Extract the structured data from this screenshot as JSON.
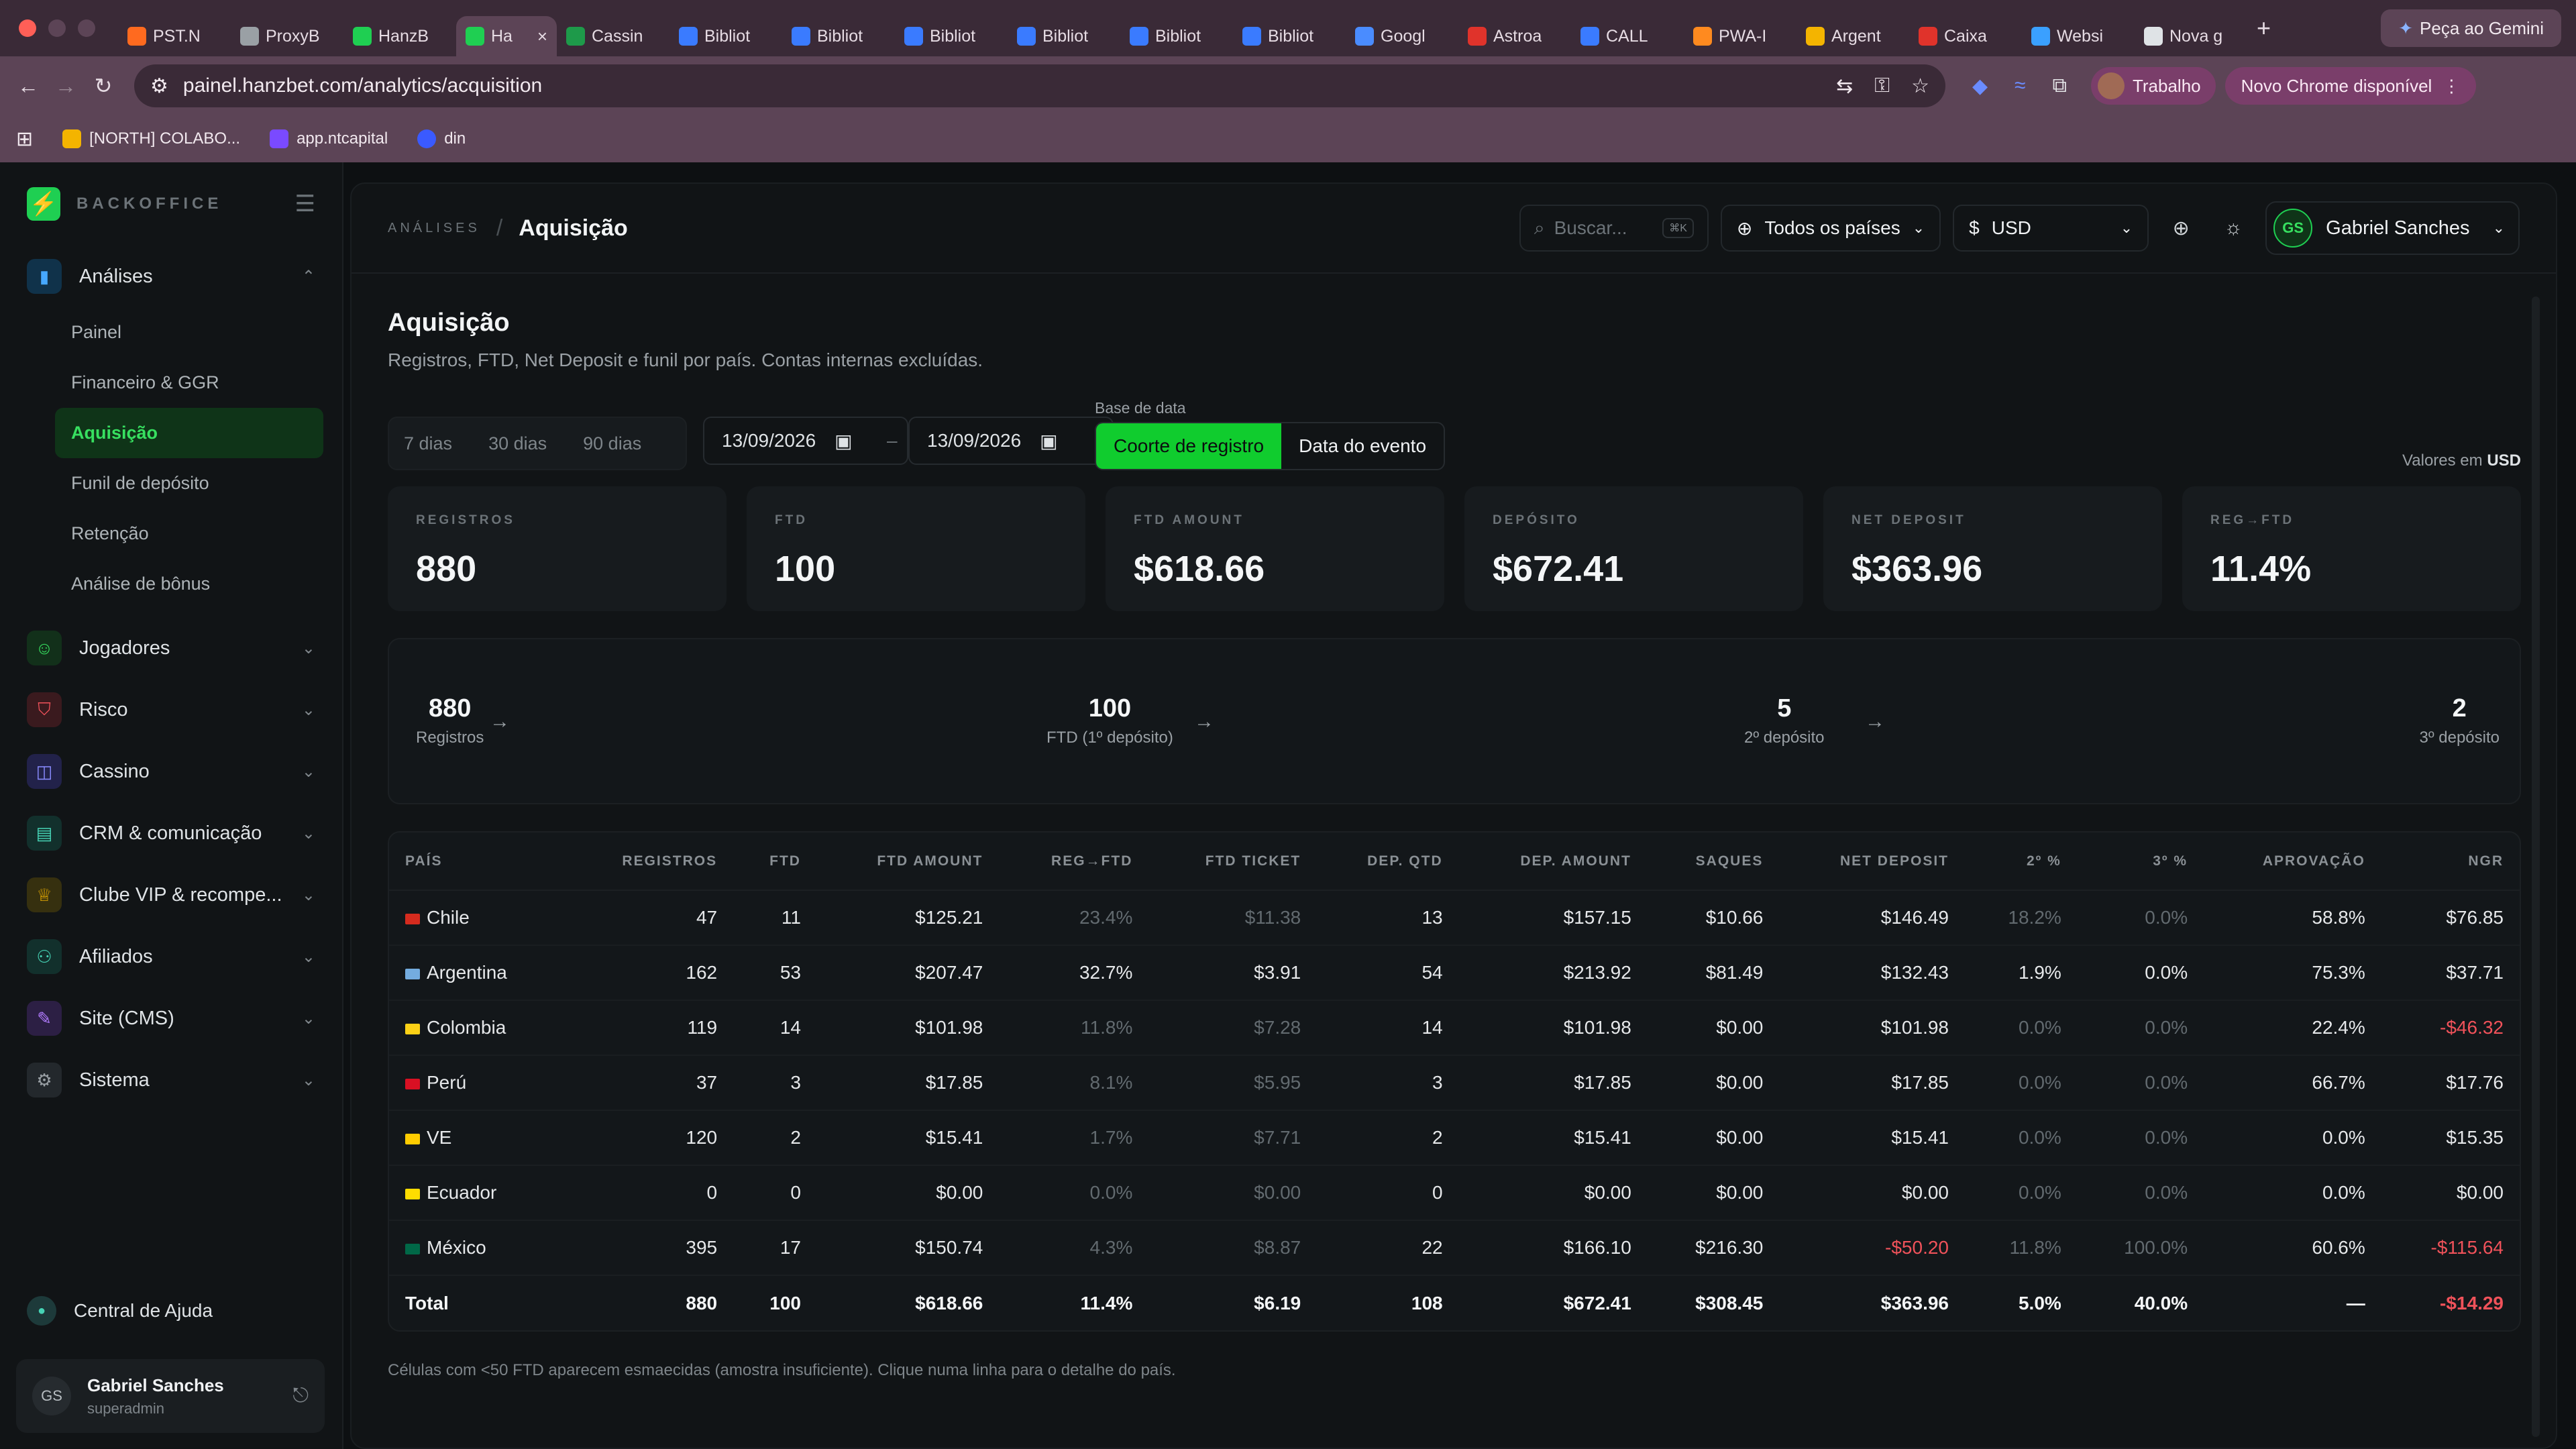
{
  "browser": {
    "tabs": [
      {
        "label": "PST.N",
        "color": "#ff6a1f"
      },
      {
        "label": "ProxyB",
        "color": "#9aa0a5"
      },
      {
        "label": "HanzB",
        "color": "#1fcf52"
      },
      {
        "label": "Ha",
        "color": "#1fcf52",
        "active": true
      },
      {
        "label": "Cassin",
        "color": "#1e9a4a"
      },
      {
        "label": "Bibliot",
        "color": "#3a7bff"
      },
      {
        "label": "Bibliot",
        "color": "#3a7bff"
      },
      {
        "label": "Bibliot",
        "color": "#3a7bff"
      },
      {
        "label": "Bibliot",
        "color": "#3a7bff"
      },
      {
        "label": "Bibliot",
        "color": "#3a7bff"
      },
      {
        "label": "Bibliot",
        "color": "#3a7bff"
      },
      {
        "label": "Googl",
        "color": "#4a8cff"
      },
      {
        "label": "Astroa",
        "color": "#e0332b"
      },
      {
        "label": "CALL",
        "color": "#3a7bff"
      },
      {
        "label": "PWA-I",
        "color": "#ff8a1f"
      },
      {
        "label": "Argent",
        "color": "#f4b400"
      },
      {
        "label": "Caixa",
        "color": "#e0332b"
      },
      {
        "label": "Websi",
        "color": "#3aa0ff"
      },
      {
        "label": "Nova g",
        "color": "#dfe3e6"
      }
    ],
    "gemini": "Peça ao Gemini",
    "url": "painel.hanzbet.com/analytics/acquisition",
    "profile": "Trabalho",
    "update": "Novo Chrome disponível",
    "bookmarks": [
      "[NORTH] COLABO...",
      "app.ntcapital",
      "din"
    ]
  },
  "sidebar": {
    "brand": "BACKOFFICE",
    "analises": "Análises",
    "subitems": [
      "Painel",
      "Financeiro & GGR",
      "Aquisição",
      "Funil de depósito",
      "Retenção",
      "Análise de bônus"
    ],
    "sections": [
      {
        "label": "Jogadores",
        "icon": "users-icon",
        "color": "#37e060",
        "bg": "#12301a"
      },
      {
        "label": "Risco",
        "icon": "shield-icon",
        "color": "#f0525a",
        "bg": "#3a1a1e"
      },
      {
        "label": "Cassino",
        "icon": "gamepad-icon",
        "color": "#8a8cff",
        "bg": "#22224a"
      },
      {
        "label": "CRM & comunicação",
        "icon": "message-icon",
        "color": "#46d3b5",
        "bg": "#12302c"
      },
      {
        "label": "Clube VIP & recompe...",
        "icon": "trophy-icon",
        "color": "#f4b400",
        "bg": "#36300f"
      },
      {
        "label": "Afiliados",
        "icon": "affiliates-icon",
        "color": "#46d3b5",
        "bg": "#12302c"
      },
      {
        "label": "Site (CMS)",
        "icon": "cms-icon",
        "color": "#b27cff",
        "bg": "#2c1f44"
      },
      {
        "label": "Sistema",
        "icon": "settings-icon",
        "color": "#9aa0a5",
        "bg": "#23282c"
      }
    ],
    "help": "Central de Ajuda",
    "user": {
      "initials": "GS",
      "name": "Gabriel Sanches",
      "role": "superadmin"
    }
  },
  "topbar": {
    "crumb": "ANÁLISES",
    "page": "Aquisição",
    "search": "Buscar...",
    "kbd": "⌘K",
    "country": "Todos os países",
    "currency_symbol": "$",
    "currency": "USD",
    "user_initials": "GS",
    "user_name": "Gabriel Sanches"
  },
  "page": {
    "title": "Aquisição",
    "description": "Registros, FTD, Net Deposit e funil por país. Contas internas excluídas.",
    "ranges": [
      "7 dias",
      "30 dias",
      "90 dias"
    ],
    "date_from": "13/09/2026",
    "date_to": "13/09/2026",
    "base_label": "Base de data",
    "base_options": [
      "Coorte de registro",
      "Data do evento"
    ],
    "valores_prefix": "Valores em",
    "valores_currency": "USD"
  },
  "kpis": [
    {
      "label": "REGISTROS",
      "value": "880"
    },
    {
      "label": "FTD",
      "value": "100"
    },
    {
      "label": "FTD AMOUNT",
      "value": "$618.66"
    },
    {
      "label": "DEPÓSITO",
      "value": "$672.41"
    },
    {
      "label": "NET DEPOSIT",
      "value": "$363.96"
    },
    {
      "label": "REG→FTD",
      "value": "11.4%"
    }
  ],
  "funnel": [
    {
      "value": "880",
      "label": "Registros"
    },
    {
      "value": "100",
      "label": "FTD (1º depósito)"
    },
    {
      "value": "5",
      "label": "2º depósito"
    },
    {
      "value": "2",
      "label": "3º depósito"
    }
  ],
  "table": {
    "headers": [
      "PAÍS",
      "REGISTROS",
      "FTD",
      "FTD AMOUNT",
      "REG→FTD",
      "FTD TICKET",
      "DEP. QTD",
      "DEP. AMOUNT",
      "SAQUES",
      "NET DEPOSIT",
      "2º %",
      "3º %",
      "APROVAÇÃO",
      "NGR"
    ],
    "rows": [
      {
        "country": "Chile",
        "flag": "#d52b1e",
        "cells": [
          "47",
          "11",
          "$125.21",
          "23.4%",
          "$11.38",
          "13",
          "$157.15",
          "$10.66",
          "$146.49",
          "18.2%",
          "0.0%",
          "58.8%",
          "$76.85"
        ]
      },
      {
        "country": "Argentina",
        "flag": "#74acdf",
        "cells": [
          "162",
          "53",
          "$207.47",
          "32.7%",
          "$3.91",
          "54",
          "$213.92",
          "$81.49",
          "$132.43",
          "1.9%",
          "0.0%",
          "75.3%",
          "$37.71"
        ]
      },
      {
        "country": "Colombia",
        "flag": "#fcd116",
        "cells": [
          "119",
          "14",
          "$101.98",
          "11.8%",
          "$7.28",
          "14",
          "$101.98",
          "$0.00",
          "$101.98",
          "0.0%",
          "0.0%",
          "22.4%",
          "-$46.32"
        ]
      },
      {
        "country": "Perú",
        "flag": "#d91023",
        "cells": [
          "37",
          "3",
          "$17.85",
          "8.1%",
          "$5.95",
          "3",
          "$17.85",
          "$0.00",
          "$17.85",
          "0.0%",
          "0.0%",
          "66.7%",
          "$17.76"
        ]
      },
      {
        "country": "VE",
        "flag": "#ffcc00",
        "cells": [
          "120",
          "2",
          "$15.41",
          "1.7%",
          "$7.71",
          "2",
          "$15.41",
          "$0.00",
          "$15.41",
          "0.0%",
          "0.0%",
          "0.0%",
          "$15.35"
        ]
      },
      {
        "country": "Ecuador",
        "flag": "#ffdd00",
        "cells": [
          "0",
          "0",
          "$0.00",
          "0.0%",
          "$0.00",
          "0",
          "$0.00",
          "$0.00",
          "$0.00",
          "0.0%",
          "0.0%",
          "0.0%",
          "$0.00"
        ]
      },
      {
        "country": "México",
        "flag": "#006847",
        "cells": [
          "395",
          "17",
          "$150.74",
          "4.3%",
          "$8.87",
          "22",
          "$166.10",
          "$216.30",
          "-$50.20",
          "11.8%",
          "100.0%",
          "60.6%",
          "-$115.64"
        ]
      }
    ],
    "total": {
      "label": "Total",
      "cells": [
        "880",
        "100",
        "$618.66",
        "11.4%",
        "$6.19",
        "108",
        "$672.41",
        "$308.45",
        "$363.96",
        "5.0%",
        "40.0%",
        "—",
        "-$14.29"
      ]
    }
  },
  "note": "Células com <50 FTD aparecem esmaecidas (amostra insuficiente). Clique numa linha para o detalhe do país."
}
